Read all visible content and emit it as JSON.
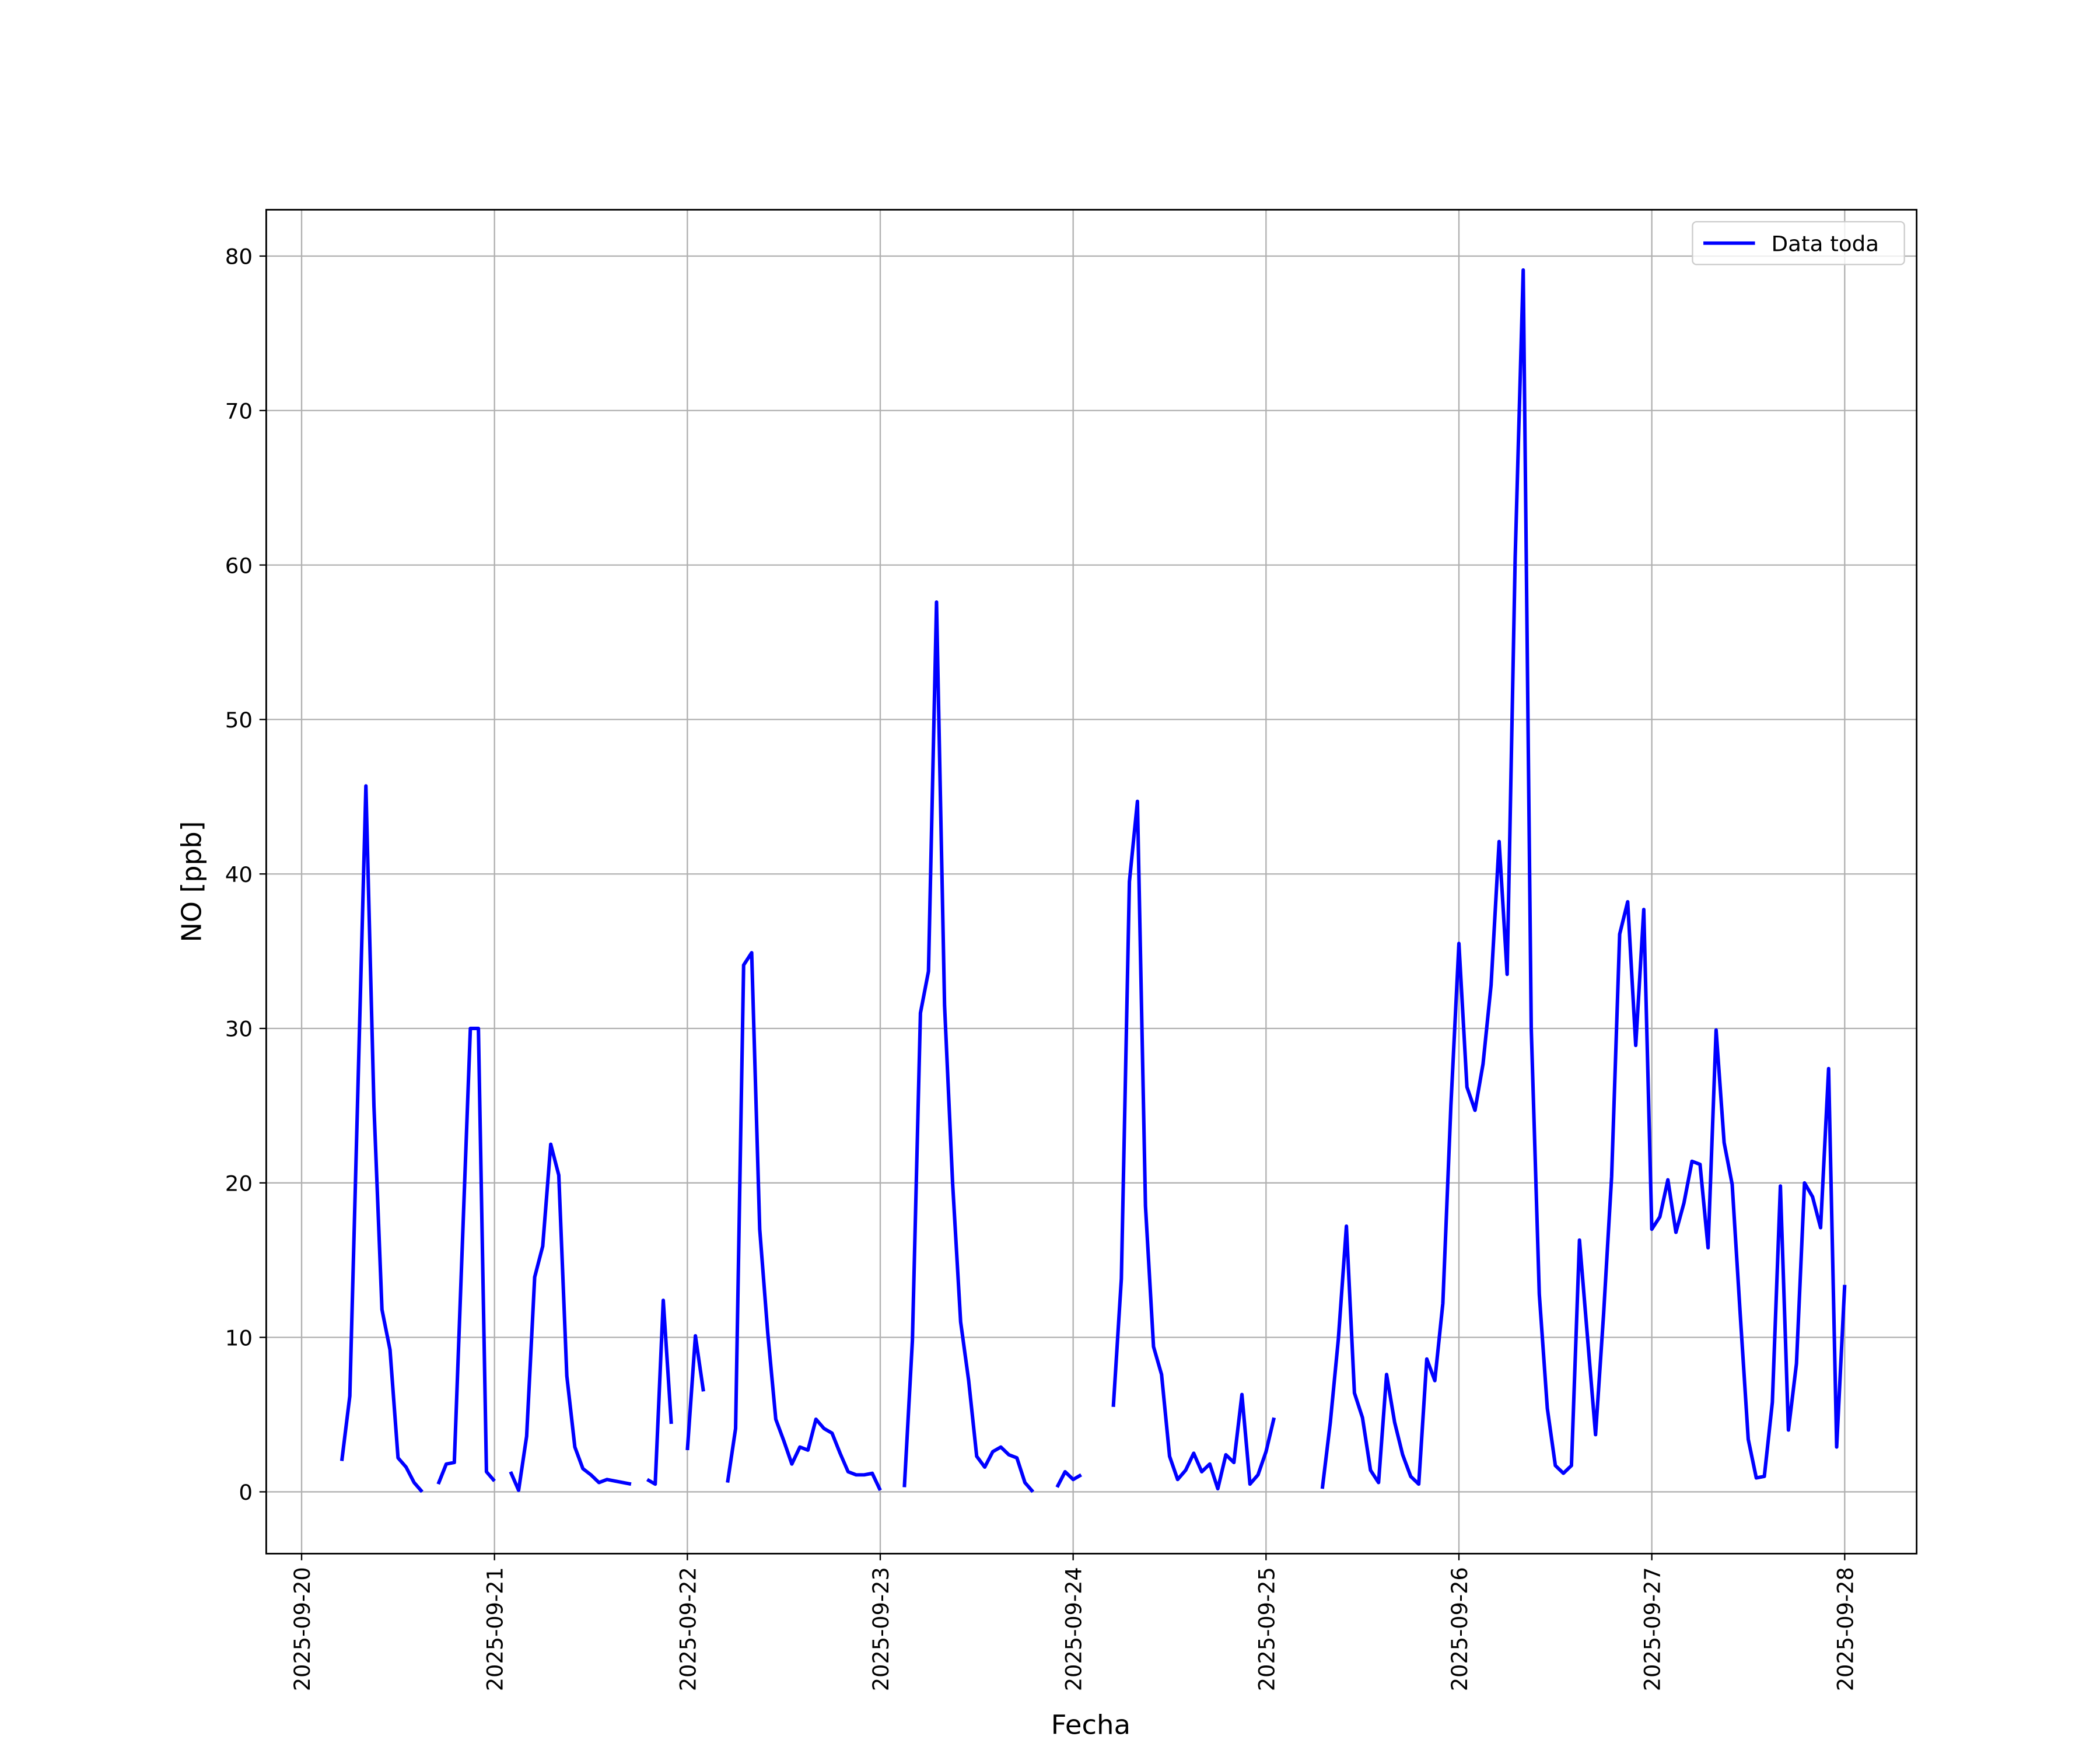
{
  "chart_data": {
    "type": "line",
    "xlabel": "Fecha",
    "ylabel": "NO [ppb]",
    "x": [
      "2025-09-20 05:00",
      "2025-09-20 06:00",
      "2025-09-20 08:00",
      "2025-09-20 09:00",
      "2025-09-20 10:00",
      "2025-09-20 11:00",
      "2025-09-20 12:00",
      "2025-09-20 13:00",
      "2025-09-20 14:00",
      "2025-09-20 15:00",
      "2025-09-20 16:00",
      "2025-09-20 17:00",
      "2025-09-20 18:00",
      "2025-09-20 19:00",
      "2025-09-20 20:00",
      "2025-09-20 21:00",
      "2025-09-20 22:00",
      "2025-09-20 23:00",
      "2025-09-21 00:00",
      "2025-09-21 01:00",
      "2025-09-21 02:00",
      "2025-09-21 03:00",
      "2025-09-21 04:00",
      "2025-09-21 05:00",
      "2025-09-21 06:00",
      "2025-09-21 07:00",
      "2025-09-21 08:00",
      "2025-09-21 09:00",
      "2025-09-21 10:00",
      "2025-09-21 11:00",
      "2025-09-21 12:00",
      "2025-09-21 13:00",
      "2025-09-21 14:00",
      "2025-09-21 15:00",
      "2025-09-21 16:00",
      "2025-09-21 17:00",
      "2025-09-21 18:00",
      "2025-09-21 19:00",
      "2025-09-21 20:00",
      "2025-09-21 21:00",
      "2025-09-21 22:00",
      "2025-09-21 23:00",
      "2025-09-22 00:00",
      "2025-09-22 01:00",
      "2025-09-22 02:00",
      "2025-09-22 03:00",
      "2025-09-22 05:00",
      "2025-09-22 06:00",
      "2025-09-22 07:00",
      "2025-09-22 08:00",
      "2025-09-22 09:00",
      "2025-09-22 10:00",
      "2025-09-22 11:00",
      "2025-09-22 12:00",
      "2025-09-22 13:00",
      "2025-09-22 14:00",
      "2025-09-22 15:00",
      "2025-09-22 16:00",
      "2025-09-22 17:00",
      "2025-09-22 18:00",
      "2025-09-22 19:00",
      "2025-09-22 20:00",
      "2025-09-22 21:00",
      "2025-09-22 22:00",
      "2025-09-22 23:00",
      "2025-09-23 00:00",
      "2025-09-23 01:00",
      "2025-09-23 03:00",
      "2025-09-23 04:00",
      "2025-09-23 05:00",
      "2025-09-23 06:00",
      "2025-09-23 07:00",
      "2025-09-23 08:00",
      "2025-09-23 09:00",
      "2025-09-23 10:00",
      "2025-09-23 11:00",
      "2025-09-23 12:00",
      "2025-09-23 13:00",
      "2025-09-23 14:00",
      "2025-09-23 15:00",
      "2025-09-23 16:00",
      "2025-09-23 17:00",
      "2025-09-23 18:00",
      "2025-09-23 19:00",
      "2025-09-23 20:00",
      "2025-09-23 22:00",
      "2025-09-23 23:00",
      "2025-09-24 00:00",
      "2025-09-24 01:00",
      "2025-09-24 02:00",
      "2025-09-24 05:00",
      "2025-09-24 06:00",
      "2025-09-24 07:00",
      "2025-09-24 08:00",
      "2025-09-24 09:00",
      "2025-09-24 10:00",
      "2025-09-24 11:00",
      "2025-09-24 12:00",
      "2025-09-24 13:00",
      "2025-09-24 14:00",
      "2025-09-24 15:00",
      "2025-09-24 16:00",
      "2025-09-24 17:00",
      "2025-09-24 18:00",
      "2025-09-24 19:00",
      "2025-09-24 20:00",
      "2025-09-24 21:00",
      "2025-09-24 22:00",
      "2025-09-24 23:00",
      "2025-09-25 00:00",
      "2025-09-25 01:00",
      "2025-09-25 02:00",
      "2025-09-25 07:00",
      "2025-09-25 08:00",
      "2025-09-25 09:00",
      "2025-09-25 10:00",
      "2025-09-25 11:00",
      "2025-09-25 12:00",
      "2025-09-25 13:00",
      "2025-09-25 14:00",
      "2025-09-25 15:00",
      "2025-09-25 16:00",
      "2025-09-25 17:00",
      "2025-09-25 18:00",
      "2025-09-25 19:00",
      "2025-09-25 20:00",
      "2025-09-25 21:00",
      "2025-09-25 22:00",
      "2025-09-25 23:00",
      "2025-09-26 00:00",
      "2025-09-26 01:00",
      "2025-09-26 02:00",
      "2025-09-26 03:00",
      "2025-09-26 04:00",
      "2025-09-26 05:00",
      "2025-09-26 06:00",
      "2025-09-26 07:00",
      "2025-09-26 08:00",
      "2025-09-26 09:00",
      "2025-09-26 10:00",
      "2025-09-26 11:00",
      "2025-09-26 12:00",
      "2025-09-26 13:00",
      "2025-09-26 14:00",
      "2025-09-26 15:00",
      "2025-09-26 16:00",
      "2025-09-26 17:00",
      "2025-09-26 18:00",
      "2025-09-26 19:00",
      "2025-09-26 20:00",
      "2025-09-26 21:00",
      "2025-09-26 22:00",
      "2025-09-26 23:00",
      "2025-09-27 00:00",
      "2025-09-27 01:00",
      "2025-09-27 02:00",
      "2025-09-27 03:00",
      "2025-09-27 04:00",
      "2025-09-27 05:00",
      "2025-09-27 06:00",
      "2025-09-27 07:00",
      "2025-09-27 08:00",
      "2025-09-27 09:00",
      "2025-09-27 10:00",
      "2025-09-27 11:00",
      "2025-09-27 12:00",
      "2025-09-27 13:00",
      "2025-09-27 14:00",
      "2025-09-27 15:00",
      "2025-09-27 16:00",
      "2025-09-27 17:00",
      "2025-09-27 18:00",
      "2025-09-27 19:00",
      "2025-09-27 20:00",
      "2025-09-27 21:00",
      "2025-09-27 22:00",
      "2025-09-27 23:00",
      "2025-09-28 00:00"
    ],
    "series": [
      {
        "name": "Data toda",
        "color": "#0000ff",
        "values": [
          2.0,
          6.2,
          45.7,
          25,
          11.8,
          9.2,
          2.2,
          1.6,
          0.6,
          0.0,
          null,
          0.5,
          1.8,
          1.9,
          16,
          30,
          30,
          1.3,
          0.7,
          null,
          1.3,
          0.1,
          3.6,
          13.9,
          15.9,
          22.5,
          20.5,
          7.5,
          2.9,
          1.5,
          1.1,
          0.6,
          0.8,
          0.7,
          0.6,
          0.5,
          null,
          0.8,
          0.5,
          12.4,
          4.4,
          null,
          2.7,
          10.1,
          6.5,
          null,
          0.6,
          4.1,
          34.1,
          34.9,
          17,
          10.3,
          4.7,
          3.3,
          1.8,
          2.9,
          2.7,
          4.7,
          4.1,
          3.8,
          2.5,
          1.3,
          1.1,
          1.1,
          1.2,
          0.1,
          null,
          0.3,
          9.8,
          31,
          33.7,
          57.6,
          31.5,
          20,
          11,
          7.2,
          2.3,
          1.6,
          2.6,
          2.9,
          2.4,
          2.2,
          0.6,
          0.0,
          null,
          0.3,
          1.3,
          0.8,
          1.1,
          null,
          5.5,
          13.8,
          39.5,
          44.7,
          18.5,
          9.4,
          7.6,
          2.3,
          0.8,
          1.4,
          2.5,
          1.3,
          1.8,
          0.2,
          2.4,
          1.9,
          6.3,
          0.5,
          1.1,
          2.6,
          4.8,
          null,
          0.2,
          4.5,
          9.9,
          17.2,
          6.4,
          4.8,
          1.4,
          0.6,
          7.6,
          4.5,
          2.4,
          1.0,
          0.5,
          8.6,
          7.2,
          12.2,
          25,
          35.5,
          26.2,
          24.7,
          27.7,
          32.8,
          42.1,
          33.5,
          60.5,
          79.1,
          30,
          12.8,
          5.4,
          1.7,
          1.2,
          1.7,
          16.3,
          10,
          3.7,
          11.5,
          20.4,
          36.1,
          38.2,
          28.9,
          37.7,
          17,
          17.8,
          20.2,
          16.8,
          18.7,
          21.4,
          21.2,
          15.8,
          29.9,
          22.6,
          19.9,
          11.5,
          3.4,
          0.9,
          1.0,
          5.8,
          19.8,
          4.0,
          8.3,
          20,
          19.1,
          17.1,
          27.4,
          2.9,
          13.4
        ]
      }
    ],
    "xlim": [
      "2025-09-19 19:36",
      "2025-09-28 08:57"
    ],
    "xticks": [
      "2025-09-20",
      "2025-09-21",
      "2025-09-22",
      "2025-09-23",
      "2025-09-24",
      "2025-09-25",
      "2025-09-26",
      "2025-09-27",
      "2025-09-28"
    ],
    "ylim": [
      -4,
      83
    ],
    "yticks": [
      0,
      10,
      20,
      30,
      40,
      50,
      60,
      70,
      80
    ],
    "grid": true,
    "legend": "upper right"
  }
}
